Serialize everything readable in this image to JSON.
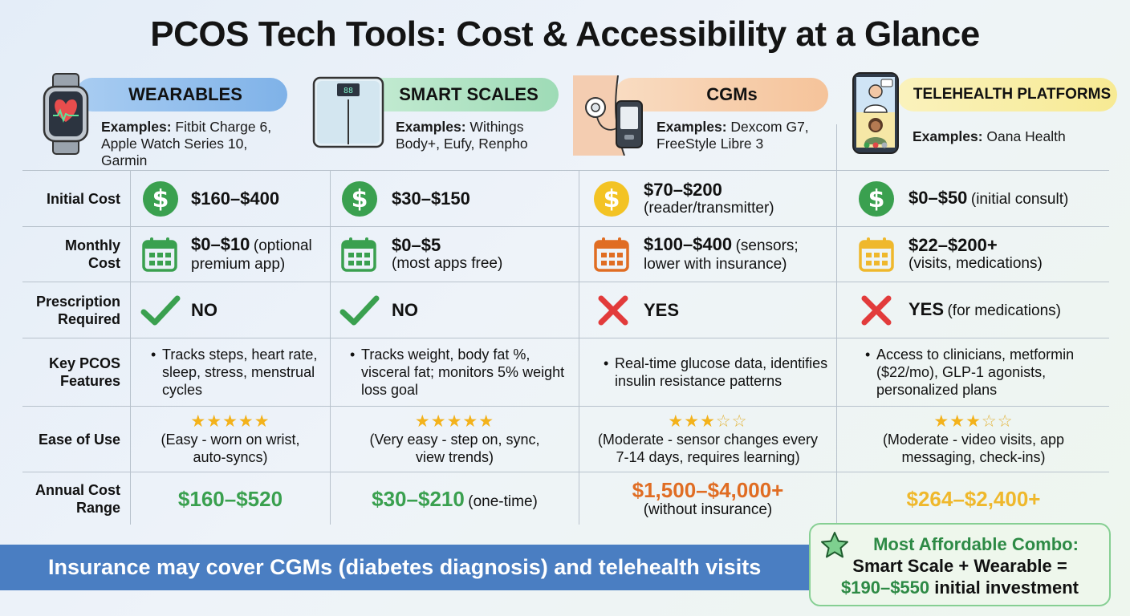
{
  "title": "PCOS Tech Tools: Cost & Accessibility at a Glance",
  "colors": {
    "wearables_pill": "#7fb2e8",
    "scales_pill": "#9edbb6",
    "cgm_pill": "#f5c39a",
    "telehealth_pill": "#f7ea93",
    "green": "#3aa04f",
    "orange": "#e06d23",
    "yellow": "#efb82c",
    "banner": "#4a7ec2"
  },
  "columns": [
    {
      "name": "WEARABLES",
      "icon": "smartwatch-icon",
      "examples_label": "Examples:",
      "examples": "Fitbit Charge 6, Apple Watch Series 10, Garmin",
      "initial_cost": {
        "value": "$160–$400",
        "note": ""
      },
      "monthly_cost": {
        "value": "$0–$10",
        "note": "(optional premium app)"
      },
      "prescription": {
        "value": "NO",
        "note": ""
      },
      "features": "Tracks steps, heart rate, sleep, stress, menstrual cycles",
      "ease_rating": 5,
      "ease_text": "(Easy - worn on wrist, auto-syncs)",
      "annual": {
        "value": "$160–$520",
        "note": ""
      }
    },
    {
      "name": "SMART SCALES",
      "icon": "smart-scale-icon",
      "examples_label": "Examples:",
      "examples": "Withings Body+, Eufy, Renpho",
      "initial_cost": {
        "value": "$30–$150",
        "note": ""
      },
      "monthly_cost": {
        "value": "$0–$5",
        "note": "(most apps free)"
      },
      "prescription": {
        "value": "NO",
        "note": ""
      },
      "features": "Tracks weight, body fat %, visceral fat; monitors 5% weight loss goal",
      "ease_rating": 5,
      "ease_text": "(Very easy - step on, sync, view trends)",
      "annual": {
        "value": "$30–$210",
        "note": "(one-time)"
      }
    },
    {
      "name": "CGMs",
      "icon": "cgm-sensor-icon",
      "examples_label": "Examples:",
      "examples": "Dexcom G7, FreeStyle Libre 3",
      "initial_cost": {
        "value": "$70–$200",
        "note": "(reader/transmitter)"
      },
      "monthly_cost": {
        "value": "$100–$400",
        "note": "(sensors; lower with insurance)"
      },
      "prescription": {
        "value": "YES",
        "note": ""
      },
      "features": "Real-time glucose data, identifies insulin resistance patterns",
      "ease_rating": 3,
      "ease_text": "(Moderate - sensor changes every 7-14 days, requires learning)",
      "annual": {
        "value": "$1,500–$4,000+",
        "note": "(without insurance)"
      }
    },
    {
      "name": "TELEHEALTH PLATFORMS",
      "icon": "video-call-phone-icon",
      "examples_label": "Examples:",
      "examples": "Oana Health",
      "initial_cost": {
        "value": "$0–$50",
        "note": "(initial consult)"
      },
      "monthly_cost": {
        "value": "$22–$200+",
        "note": "(visits, medications)"
      },
      "prescription": {
        "value": "YES",
        "note": "(for medications)"
      },
      "features": "Access to clinicians, metformin ($22/mo), GLP-1 agonists, personalized plans",
      "ease_rating": 3,
      "ease_text": "(Moderate - video visits, app messaging, check-ins)",
      "annual": {
        "value": "$264–$2,400+",
        "note": ""
      }
    }
  ],
  "row_labels": {
    "initial_cost": "Initial Cost",
    "monthly_cost_1": "Monthly",
    "monthly_cost_2": "Cost",
    "prescription_1": "Prescription",
    "prescription_2": "Required",
    "features_1": "Key PCOS",
    "features_2": "Features",
    "ease": "Ease of Use",
    "annual_1": "Annual Cost",
    "annual_2": "Range"
  },
  "footer": {
    "banner": "Insurance may cover CGMs (diabetes diagnosis) and telehealth visits",
    "combo_line1": "Most Affordable Combo:",
    "combo_line2": "Smart Scale + Wearable =",
    "combo_amount": "$190–$550",
    "combo_suffix": " initial investment"
  }
}
